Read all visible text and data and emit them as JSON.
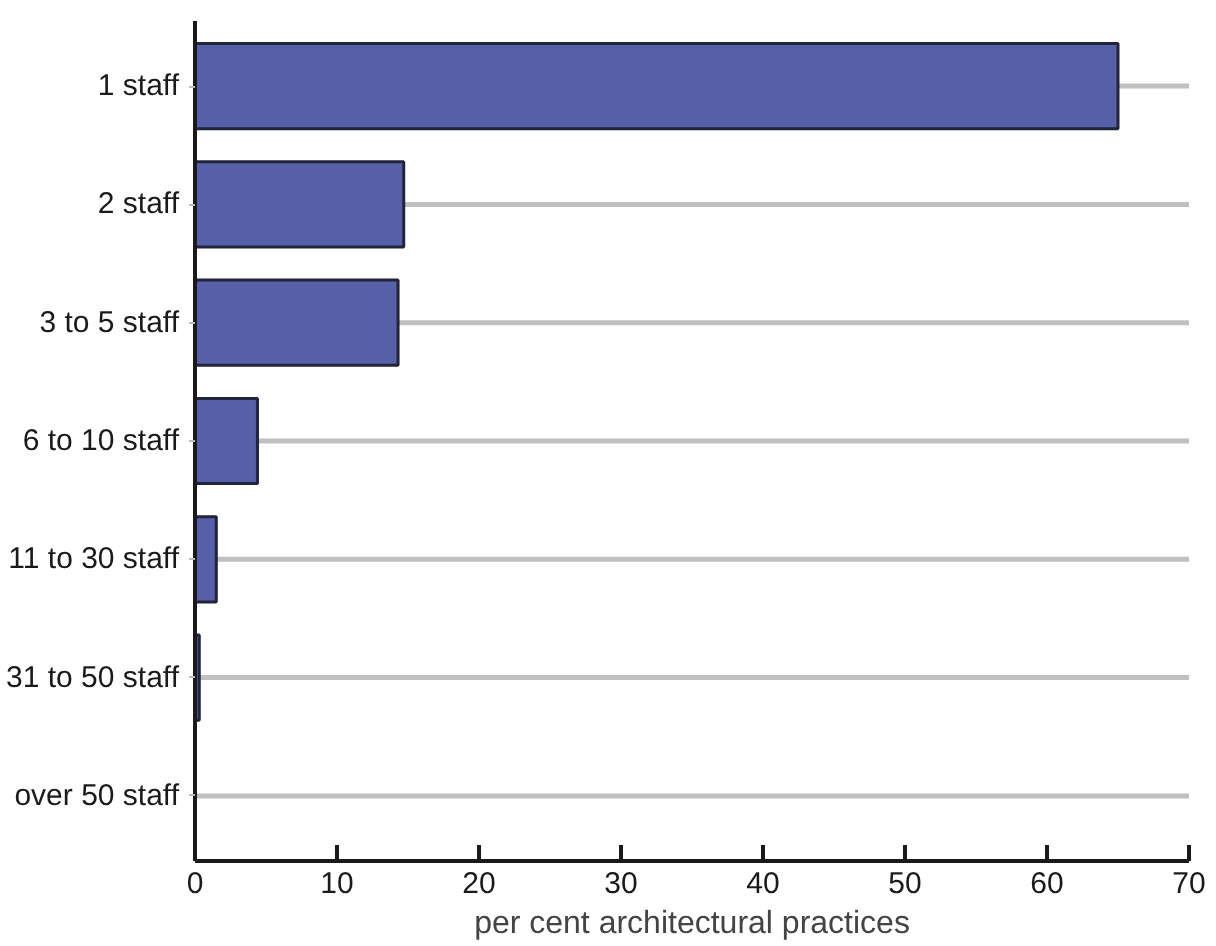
{
  "chart_data": {
    "type": "bar",
    "orientation": "horizontal",
    "xlabel": "per cent architectural practices",
    "categories": [
      "1 staff",
      "2 staff",
      "3 to 5 staff",
      "6 to 10 staff",
      "11 to 30 staff",
      "31 to 50 staff",
      "over 50 staff"
    ],
    "values": [
      65.0,
      14.7,
      14.3,
      4.4,
      1.5,
      0.3,
      0
    ],
    "color": "#5560a8",
    "xlim": [
      0,
      70
    ],
    "xticks": [
      0,
      10,
      20,
      30,
      40,
      50,
      60,
      70
    ],
    "grid": "y"
  }
}
